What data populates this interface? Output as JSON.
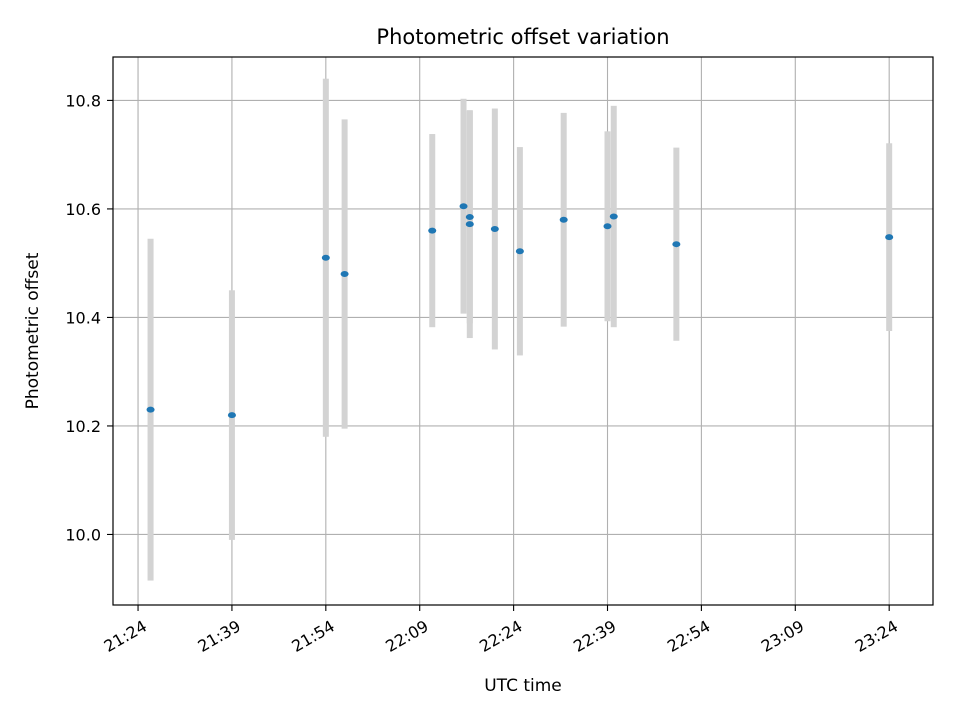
{
  "chart_data": {
    "type": "scatter",
    "title": "Photometric offset variation",
    "xlabel": "UTC time",
    "ylabel": "Photometric offset",
    "x_tick_labels": [
      "21:24",
      "21:39",
      "21:54",
      "22:09",
      "22:24",
      "22:39",
      "22:54",
      "23:09",
      "23:24"
    ],
    "y_tick_labels": [
      "10.0",
      "10.2",
      "10.4",
      "10.6",
      "10.8"
    ],
    "y_ticks": [
      10.0,
      10.2,
      10.4,
      10.6,
      10.8
    ],
    "xlim": [
      "21:20",
      "23:31"
    ],
    "ylim": [
      9.87,
      10.88
    ],
    "grid": true,
    "colors": {
      "marker": "#1f77b4",
      "error_bar": "#d3d3d3",
      "grid": "#b0b0b0"
    },
    "series": [
      {
        "points": [
          {
            "t": "21:26",
            "y": 10.23,
            "err": 0.315
          },
          {
            "t": "21:39",
            "y": 10.22,
            "err": 0.23
          },
          {
            "t": "21:54",
            "y": 10.51,
            "err": 0.33
          },
          {
            "t": "21:57",
            "y": 10.48,
            "err": 0.285
          },
          {
            "t": "22:11",
            "y": 10.56,
            "err": 0.178
          },
          {
            "t": "22:16",
            "y": 10.605,
            "err": 0.198
          },
          {
            "t": "22:17",
            "y": 10.572,
            "err": 0.21
          },
          {
            "t": "22:17",
            "y": 10.585,
            "err": 0.196
          },
          {
            "t": "22:21",
            "y": 10.563,
            "err": 0.222
          },
          {
            "t": "22:25",
            "y": 10.522,
            "err": 0.192
          },
          {
            "t": "22:32",
            "y": 10.58,
            "err": 0.197
          },
          {
            "t": "22:39",
            "y": 10.568,
            "err": 0.175
          },
          {
            "t": "22:40",
            "y": 10.586,
            "err": 0.204
          },
          {
            "t": "22:50",
            "y": 10.535,
            "err": 0.178
          },
          {
            "t": "23:24",
            "y": 10.548,
            "err": 0.173
          }
        ]
      }
    ]
  }
}
